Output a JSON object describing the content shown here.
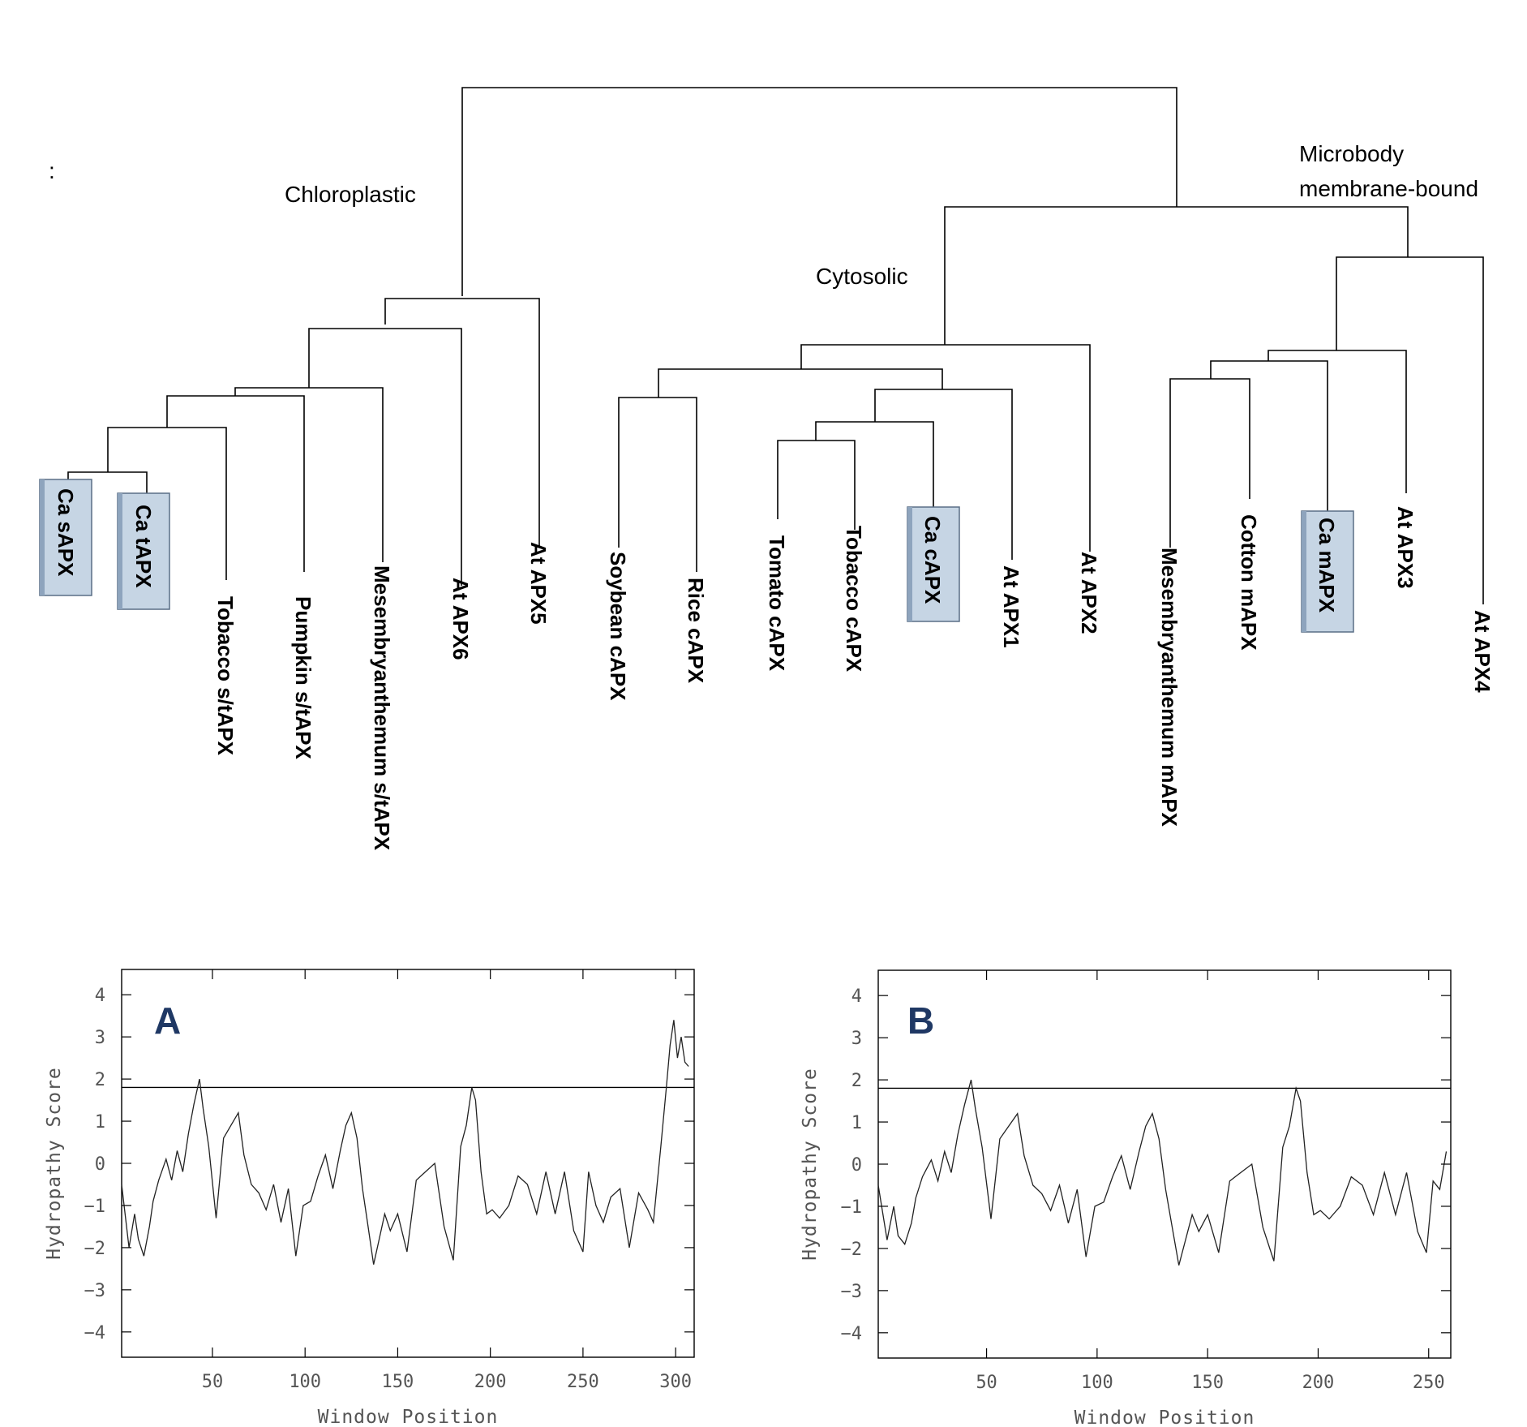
{
  "stray_mark": ":",
  "clades": {
    "chloroplastic": "Chloroplastic",
    "cytosolic": "Cytosolic",
    "microbody_line1": "Microbody",
    "microbody_line2": "membrane-bound"
  },
  "leaves": [
    {
      "label": "Ca sAPX",
      "highlight": true
    },
    {
      "label": "Ca tAPX",
      "highlight": true
    },
    {
      "label": "Tobacco s/tAPX",
      "highlight": false
    },
    {
      "label": "Pumpkin s/tAPX",
      "highlight": false
    },
    {
      "label": "Mesembryanthemum s/tAPX",
      "highlight": false
    },
    {
      "label": "At APX6",
      "highlight": false
    },
    {
      "label": "At APX5",
      "highlight": false
    },
    {
      "label": "Soybean cAPX",
      "highlight": false
    },
    {
      "label": "Rice cAPX",
      "highlight": false
    },
    {
      "label": "Tomato cAPX",
      "highlight": false
    },
    {
      "label": "Tobacco cAPX",
      "highlight": false
    },
    {
      "label": "Ca cAPX",
      "highlight": true
    },
    {
      "label": "At APX1",
      "highlight": false
    },
    {
      "label": "At APX2",
      "highlight": false
    },
    {
      "label": "Mesembryanthemum mAPX",
      "highlight": false
    },
    {
      "label": "Cotton mAPX",
      "highlight": false
    },
    {
      "label": "Ca mAPX",
      "highlight": true
    },
    {
      "label": "At APX3",
      "highlight": false
    },
    {
      "label": "At APX4",
      "highlight": false
    }
  ],
  "colors": {
    "highlight_fill": "#c6d5e4",
    "panel_letter": "#1f3864"
  },
  "chart_data": [
    {
      "type": "line",
      "panel": "A",
      "xlabel": "Window Position",
      "ylabel": "Hydropathy Score",
      "xlim": [
        1,
        310
      ],
      "ylim": [
        -4.6,
        4.6
      ],
      "xticks": [
        50,
        100,
        150,
        200,
        250,
        300
      ],
      "yticks": [
        4,
        3,
        2,
        1,
        0,
        -1,
        -2,
        -3,
        -4
      ],
      "threshold": 1.8,
      "x": [
        1,
        5,
        8,
        10,
        13,
        16,
        18,
        21,
        25,
        28,
        31,
        34,
        37,
        40,
        43,
        45,
        48,
        52,
        56,
        60,
        64,
        67,
        71,
        75,
        79,
        83,
        87,
        91,
        95,
        99,
        103,
        107,
        111,
        115,
        119,
        122,
        125,
        128,
        131,
        134,
        137,
        140,
        143,
        146,
        150,
        155,
        160,
        165,
        170,
        175,
        180,
        184,
        187,
        190,
        192,
        195,
        198,
        201,
        205,
        210,
        215,
        220,
        225,
        230,
        235,
        240,
        245,
        250,
        253,
        257,
        261,
        265,
        270,
        275,
        280,
        285,
        288,
        292,
        295,
        297,
        299,
        301,
        303,
        305,
        307
      ],
      "y": [
        -0.5,
        -2.0,
        -1.2,
        -1.8,
        -2.2,
        -1.5,
        -0.9,
        -0.4,
        0.1,
        -0.4,
        0.3,
        -0.2,
        0.7,
        1.4,
        2.0,
        1.3,
        0.4,
        -1.3,
        0.6,
        0.9,
        1.2,
        0.2,
        -0.5,
        -0.7,
        -1.1,
        -0.5,
        -1.4,
        -0.6,
        -2.2,
        -1.0,
        -0.9,
        -0.3,
        0.2,
        -0.6,
        0.3,
        0.9,
        1.2,
        0.6,
        -0.6,
        -1.5,
        -2.4,
        -1.8,
        -1.2,
        -1.6,
        -1.2,
        -2.1,
        -0.4,
        -0.2,
        0.0,
        -1.5,
        -2.3,
        0.4,
        0.9,
        1.8,
        1.5,
        -0.2,
        -1.2,
        -1.1,
        -1.3,
        -1.0,
        -0.3,
        -0.5,
        -1.2,
        -0.2,
        -1.2,
        -0.2,
        -1.6,
        -2.1,
        -0.2,
        -1.0,
        -1.4,
        -0.8,
        -0.6,
        -2.0,
        -0.7,
        -1.1,
        -1.4,
        0.4,
        1.8,
        2.8,
        3.4,
        2.5,
        3.0,
        2.4,
        2.3
      ]
    },
    {
      "type": "line",
      "panel": "B",
      "xlabel": "Window Position",
      "ylabel": "Hydropathy Score",
      "xlim": [
        1,
        260
      ],
      "ylim": [
        -4.6,
        4.6
      ],
      "xticks": [
        50,
        100,
        150,
        200,
        250
      ],
      "yticks": [
        4,
        3,
        2,
        1,
        0,
        -1,
        -2,
        -3,
        -4
      ],
      "threshold": 1.8,
      "x": [
        1,
        5,
        8,
        10,
        13,
        16,
        18,
        21,
        25,
        28,
        31,
        34,
        37,
        40,
        43,
        45,
        48,
        52,
        56,
        60,
        64,
        67,
        71,
        75,
        79,
        83,
        87,
        91,
        95,
        99,
        103,
        107,
        111,
        115,
        119,
        122,
        125,
        128,
        131,
        134,
        137,
        140,
        143,
        146,
        150,
        155,
        160,
        165,
        170,
        175,
        180,
        184,
        187,
        190,
        192,
        195,
        198,
        201,
        205,
        210,
        215,
        220,
        225,
        230,
        235,
        240,
        245,
        249,
        252,
        255,
        258
      ],
      "y": [
        -0.5,
        -1.8,
        -1.0,
        -1.7,
        -1.9,
        -1.4,
        -0.8,
        -0.3,
        0.1,
        -0.4,
        0.3,
        -0.2,
        0.7,
        1.4,
        2.0,
        1.3,
        0.4,
        -1.3,
        0.6,
        0.9,
        1.2,
        0.2,
        -0.5,
        -0.7,
        -1.1,
        -0.5,
        -1.4,
        -0.6,
        -2.2,
        -1.0,
        -0.9,
        -0.3,
        0.2,
        -0.6,
        0.3,
        0.9,
        1.2,
        0.6,
        -0.6,
        -1.5,
        -2.4,
        -1.8,
        -1.2,
        -1.6,
        -1.2,
        -2.1,
        -0.4,
        -0.2,
        0.0,
        -1.5,
        -2.3,
        0.4,
        0.9,
        1.8,
        1.5,
        -0.2,
        -1.2,
        -1.1,
        -1.3,
        -1.0,
        -0.3,
        -0.5,
        -1.2,
        -0.2,
        -1.2,
        -0.2,
        -1.6,
        -2.1,
        -0.4,
        -0.6,
        0.3
      ]
    }
  ]
}
